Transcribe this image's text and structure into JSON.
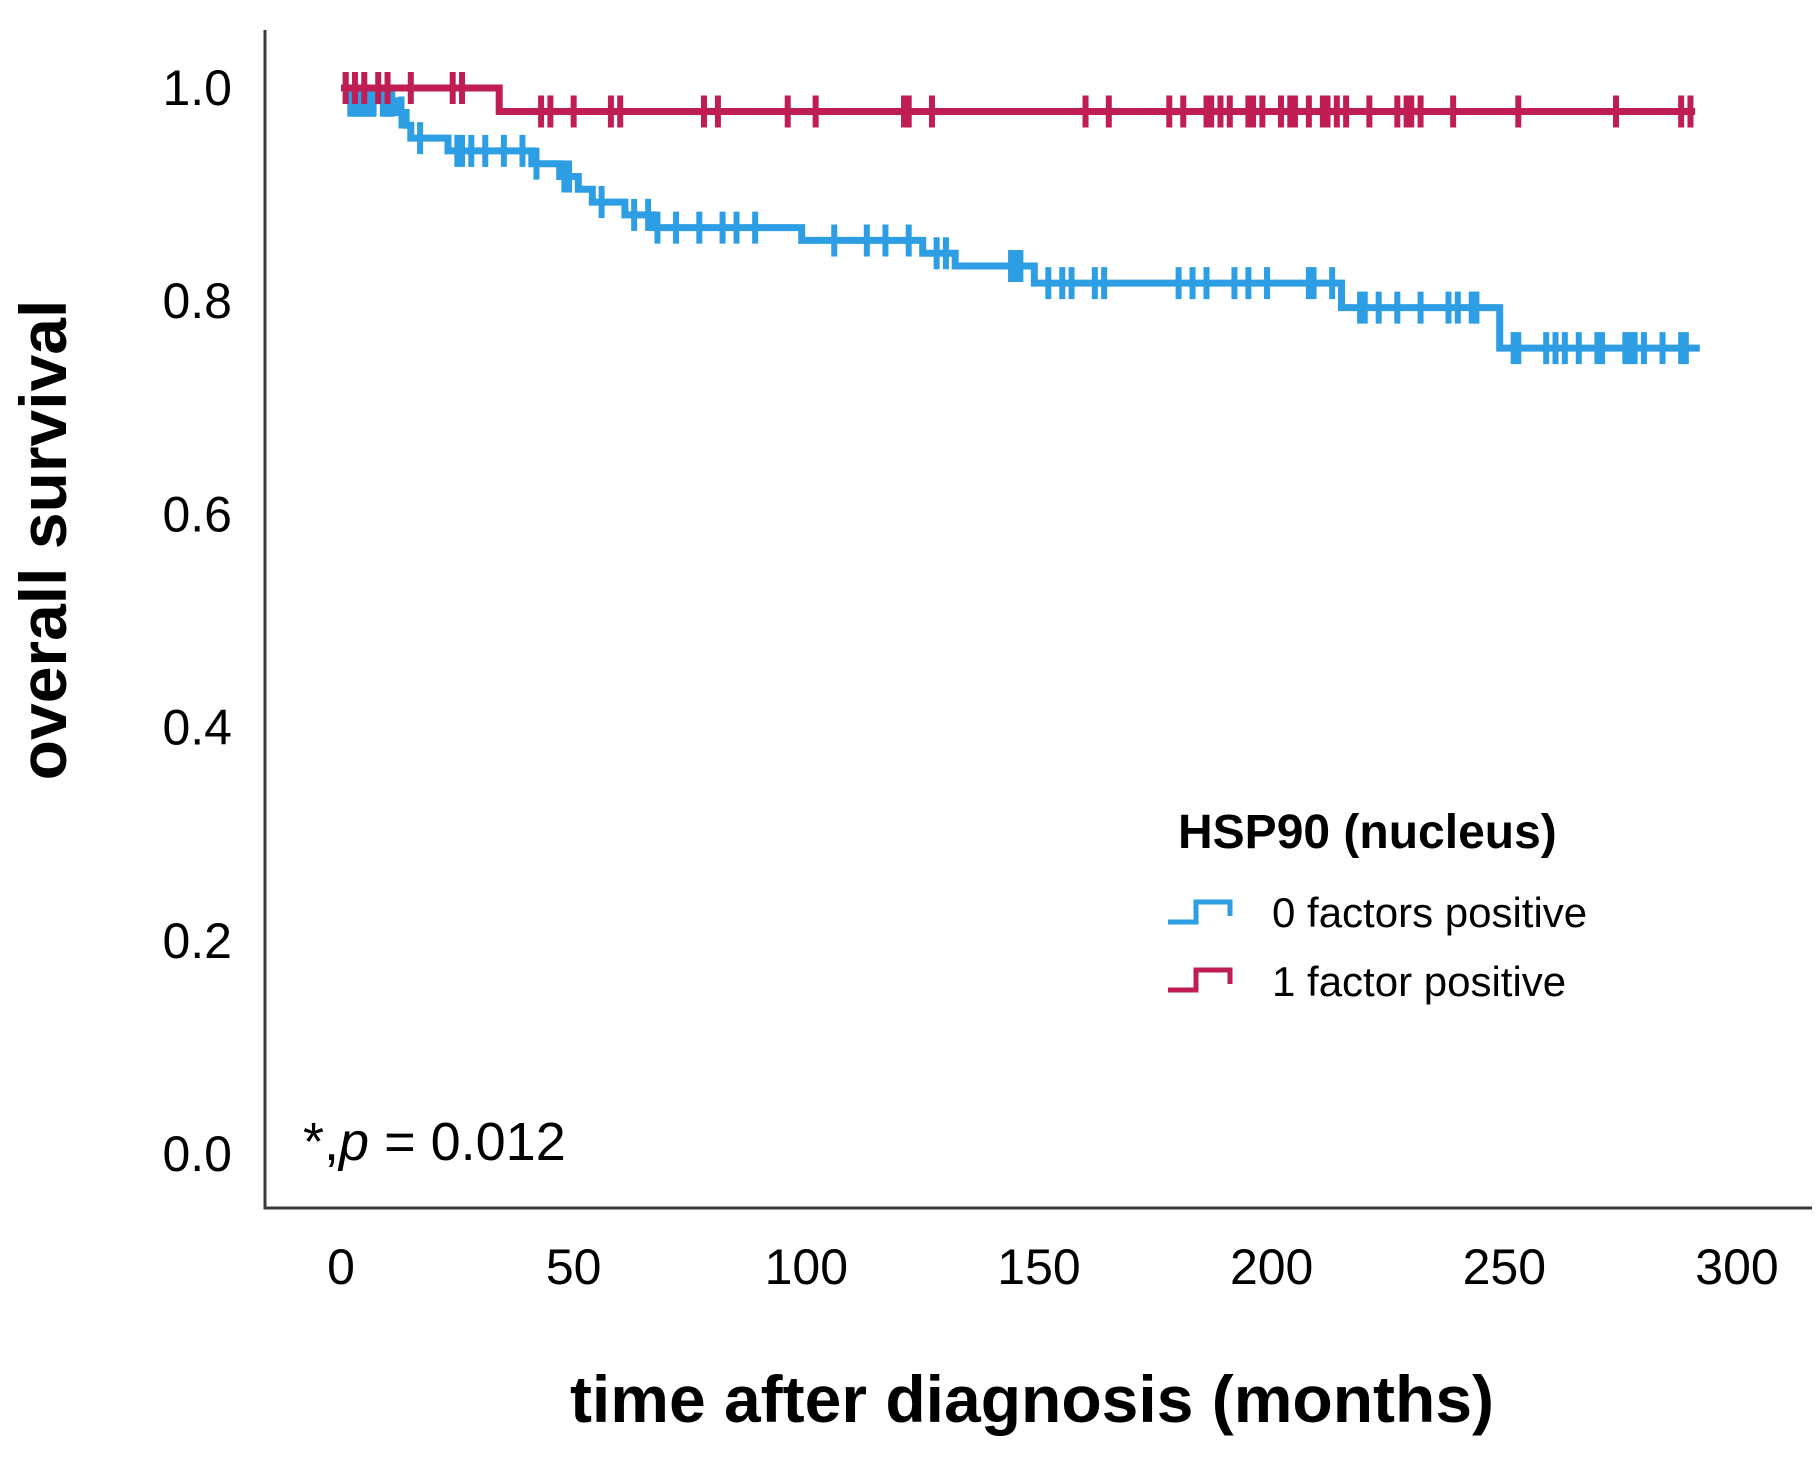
{
  "annotation": {
    "prefix": "*,",
    "p": "p",
    "suffix": " = 0.012"
  },
  "chart_data": {
    "type": "line",
    "subtype": "kaplan-meier-step",
    "title": "",
    "xlabel": "time after diagnosis (months)",
    "ylabel": "overall survival",
    "xlim": [
      0,
      300
    ],
    "ylim": [
      0.0,
      1.0
    ],
    "grid": false,
    "x_ticks": [
      {
        "label": "0",
        "value": 0
      },
      {
        "label": "50",
        "value": 50
      },
      {
        "label": "100",
        "value": 100
      },
      {
        "label": "150",
        "value": 150
      },
      {
        "label": "200",
        "value": 200
      },
      {
        "label": "250",
        "value": 250
      },
      {
        "label": "300",
        "value": 300
      }
    ],
    "y_ticks": [
      {
        "label": "1.0",
        "value": 1.0
      },
      {
        "label": "0.8",
        "value": 0.8
      },
      {
        "label": "0.6",
        "value": 0.6
      },
      {
        "label": "0.4",
        "value": 0.4
      },
      {
        "label": "0.2",
        "value": 0.2
      },
      {
        "label": "0.0",
        "value": 0.0
      }
    ],
    "legend": {
      "title": "HSP90 (nucleus)",
      "position": "right-middle",
      "entries": [
        {
          "label": "0 factors positive",
          "color": "#2d9ee3"
        },
        {
          "label": "1 factor positive",
          "color": "#bf1d54"
        }
      ]
    },
    "annotation_text": "*,p = 0.012",
    "series": [
      {
        "name": "0 factors positive",
        "color": "#2d9ee3",
        "steps": [
          [
            0,
            1.0
          ],
          [
            2,
            0.988
          ],
          [
            12,
            0.977
          ],
          [
            14,
            0.965
          ],
          [
            15,
            0.953
          ],
          [
            23,
            0.941
          ],
          [
            41,
            0.929
          ],
          [
            47,
            0.917
          ],
          [
            51,
            0.905
          ],
          [
            54,
            0.893
          ],
          [
            61,
            0.881
          ],
          [
            67,
            0.869
          ],
          [
            99,
            0.857
          ],
          [
            125,
            0.845
          ],
          [
            132,
            0.833
          ],
          [
            149,
            0.817
          ],
          [
            215,
            0.794
          ],
          [
            249,
            0.756
          ],
          [
            292,
            0.756
          ]
        ],
        "censor_times": [
          1,
          2,
          3,
          4,
          5,
          6,
          7,
          9,
          10,
          11,
          13,
          17,
          25,
          26,
          28,
          31,
          35,
          39,
          42,
          48,
          49,
          56,
          63,
          66,
          68,
          72,
          77,
          82,
          85,
          89,
          106,
          113,
          117,
          122,
          128,
          130,
          144,
          145,
          146,
          152,
          155,
          157,
          162,
          164,
          180,
          183,
          186,
          192,
          195,
          199,
          208,
          209,
          213,
          219,
          220,
          223,
          227,
          232,
          238,
          240,
          243,
          244,
          252,
          253,
          259,
          261,
          263,
          266,
          270,
          271,
          276,
          277,
          278,
          280,
          284,
          288,
          289
        ]
      },
      {
        "name": "1 factor positive",
        "color": "#bf1d54",
        "steps": [
          [
            0,
            1.0
          ],
          [
            34,
            0.978
          ],
          [
            291,
            0.978
          ]
        ],
        "censor_times": [
          1,
          3,
          5,
          8,
          10,
          15,
          24,
          26,
          43,
          45,
          50,
          58,
          60,
          78,
          81,
          96,
          102,
          121,
          122,
          127,
          160,
          165,
          178,
          181,
          186,
          187,
          189,
          191,
          195,
          196,
          198,
          202,
          204,
          205,
          208,
          211,
          212,
          214,
          216,
          221,
          227,
          229,
          230,
          232,
          239,
          253,
          274,
          288,
          290
        ]
      }
    ]
  }
}
